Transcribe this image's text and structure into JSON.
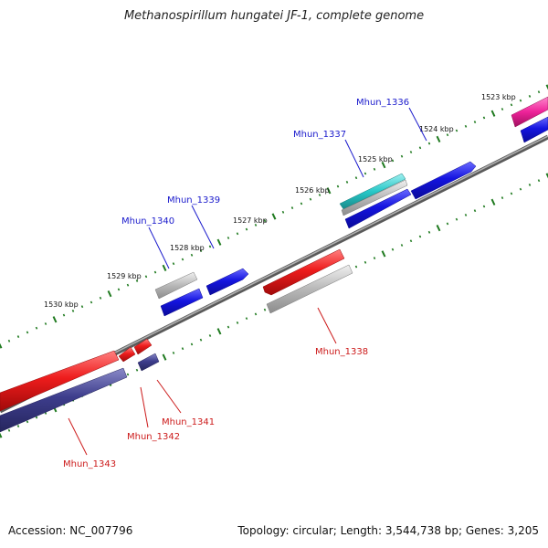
{
  "title": "Methanospirillum hungatei JF-1, complete genome",
  "footer": {
    "accession": "Accession: NC_007796",
    "summary": "Topology: circular; Length: 3,544,738 bp; Genes: 3,205"
  },
  "colors": {
    "backbone": "#7a7a7a",
    "tick": "#1f7a1f",
    "forward_label": "#1a1acc",
    "reverse_label": "#cc1a1a",
    "cds_blue": "#1414e0",
    "cds_red": "#ee1c1c",
    "cds_navy": "#3d3d8c",
    "gene_gray": "#b8b8b8",
    "trna_cyan": "#28c8c8",
    "rna_magenta": "#ee2299"
  },
  "kbp_labels": [
    "1523 kbp",
    "1524 kbp",
    "1525 kbp",
    "1526 kbp",
    "1527 kbp",
    "1528 kbp",
    "1529 kbp",
    "1530 kbp"
  ],
  "genes_forward": [
    "Mhun_1336",
    "Mhun_1337",
    "Mhun_1339",
    "Mhun_1340"
  ],
  "genes_reverse": [
    "Mhun_1338",
    "Mhun_1341",
    "Mhun_1342",
    "Mhun_1343"
  ]
}
